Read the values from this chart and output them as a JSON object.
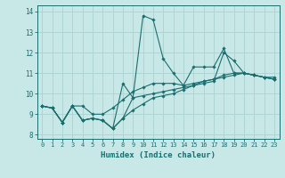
{
  "xlabel": "Humidex (Indice chaleur)",
  "bg_color": "#c8e8e8",
  "grid_color": "#afd4d4",
  "line_color": "#1a6e6e",
  "xlim": [
    -0.5,
    23.5
  ],
  "ylim": [
    7.8,
    14.3
  ],
  "yticks": [
    8,
    9,
    10,
    11,
    12,
    13,
    14
  ],
  "xticks": [
    0,
    1,
    2,
    3,
    4,
    5,
    6,
    7,
    8,
    9,
    10,
    11,
    12,
    13,
    14,
    15,
    16,
    17,
    18,
    19,
    20,
    21,
    22,
    23
  ],
  "series": [
    [
      9.4,
      9.3,
      8.6,
      9.4,
      8.7,
      8.8,
      8.7,
      8.3,
      8.8,
      9.8,
      13.8,
      13.6,
      11.7,
      11.0,
      10.4,
      11.3,
      11.3,
      11.3,
      12.2,
      11.0,
      11.0,
      10.9,
      10.8,
      10.7
    ],
    [
      9.4,
      9.3,
      8.6,
      9.4,
      9.4,
      9.0,
      9.0,
      9.3,
      9.7,
      10.1,
      10.3,
      10.5,
      10.5,
      10.5,
      10.4,
      10.5,
      10.6,
      10.7,
      10.8,
      10.9,
      11.0,
      10.9,
      10.8,
      10.8
    ],
    [
      9.4,
      9.3,
      8.6,
      9.4,
      8.7,
      8.8,
      8.7,
      8.3,
      8.8,
      9.2,
      9.5,
      9.8,
      9.9,
      10.0,
      10.2,
      10.4,
      10.6,
      10.7,
      10.9,
      11.0,
      11.0,
      10.9,
      10.8,
      10.7
    ],
    [
      9.4,
      9.3,
      8.6,
      9.4,
      8.7,
      8.8,
      8.7,
      8.3,
      10.5,
      9.8,
      9.9,
      10.0,
      10.1,
      10.2,
      10.3,
      10.4,
      10.5,
      10.6,
      12.0,
      11.6,
      11.0,
      10.9,
      10.8,
      10.7
    ]
  ]
}
